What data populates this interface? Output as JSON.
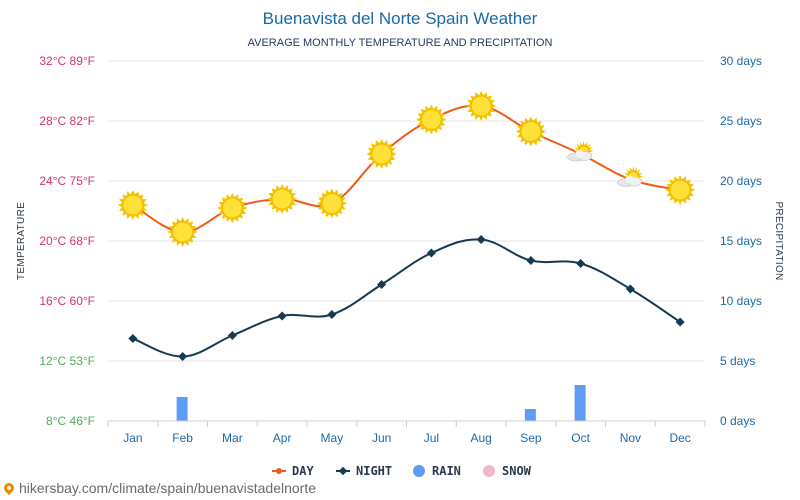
{
  "title": "Buenavista del Norte Spain Weather",
  "subtitle": "AVERAGE MONTHLY TEMPERATURE AND PRECIPITATION",
  "footer": "hikersbay.com/climate/spain/buenavistadelnorte",
  "colors": {
    "day": "#f05a1a",
    "night": "#153a52",
    "rain": "#5e9cf5",
    "snow": "#f5b8c8",
    "grid": "#e6e6e6",
    "left_tick_warm": "#d6336c",
    "left_tick_cool": "#4caf50",
    "right_tick": "#1a6aa6"
  },
  "chart_data": {
    "type": "line",
    "categories": [
      "Jan",
      "Feb",
      "Mar",
      "Apr",
      "May",
      "Jun",
      "Jul",
      "Aug",
      "Sep",
      "Oct",
      "Nov",
      "Dec"
    ],
    "series": [
      {
        "name": "DAY",
        "axis": "left",
        "unit": "°C",
        "values": [
          22.4,
          20.6,
          22.2,
          22.8,
          22.5,
          25.8,
          28.1,
          29.0,
          27.3,
          25.8,
          24.1,
          23.4
        ]
      },
      {
        "name": "NIGHT",
        "axis": "left",
        "unit": "°C",
        "values": [
          13.5,
          12.3,
          13.7,
          15.0,
          15.1,
          17.1,
          19.2,
          20.1,
          18.7,
          18.5,
          16.8,
          14.6
        ]
      },
      {
        "name": "RAIN",
        "axis": "right",
        "unit": "days",
        "values": [
          0,
          2,
          0,
          0,
          0,
          0,
          0,
          0,
          1,
          3,
          0,
          0
        ]
      },
      {
        "name": "SNOW",
        "axis": "right",
        "unit": "days",
        "values": [
          0,
          0,
          0,
          0,
          0,
          0,
          0,
          0,
          0,
          0,
          0,
          0
        ]
      }
    ],
    "day_icons": [
      "sun",
      "sun",
      "sun",
      "sun",
      "sun",
      "sun",
      "sun",
      "sun",
      "sun",
      "partly-cloudy",
      "partly-cloudy",
      "sun"
    ],
    "ylim_left": [
      8,
      32
    ],
    "ylim_right": [
      0,
      30
    ],
    "yticks_left": [
      {
        "value": 32,
        "label": "32°C 89°F"
      },
      {
        "value": 28,
        "label": "28°C 82°F"
      },
      {
        "value": 24,
        "label": "24°C 75°F"
      },
      {
        "value": 20,
        "label": "20°C 68°F"
      },
      {
        "value": 16,
        "label": "16°C 60°F"
      },
      {
        "value": 12,
        "label": "12°C 53°F"
      },
      {
        "value": 8,
        "label": "8°C 46°F"
      }
    ],
    "yticks_right": [
      {
        "value": 30,
        "label": "30 days"
      },
      {
        "value": 25,
        "label": "25 days"
      },
      {
        "value": 20,
        "label": "20 days"
      },
      {
        "value": 15,
        "label": "15 days"
      },
      {
        "value": 10,
        "label": "10 days"
      },
      {
        "value": 5,
        "label": "5 days"
      },
      {
        "value": 0,
        "label": "0 days"
      }
    ],
    "ylabel_left": "TEMPERATURE",
    "ylabel_right": "PRECIPITATION",
    "legend": [
      "DAY",
      "NIGHT",
      "RAIN",
      "SNOW"
    ],
    "legend_position": "bottom-center",
    "grid": true
  }
}
